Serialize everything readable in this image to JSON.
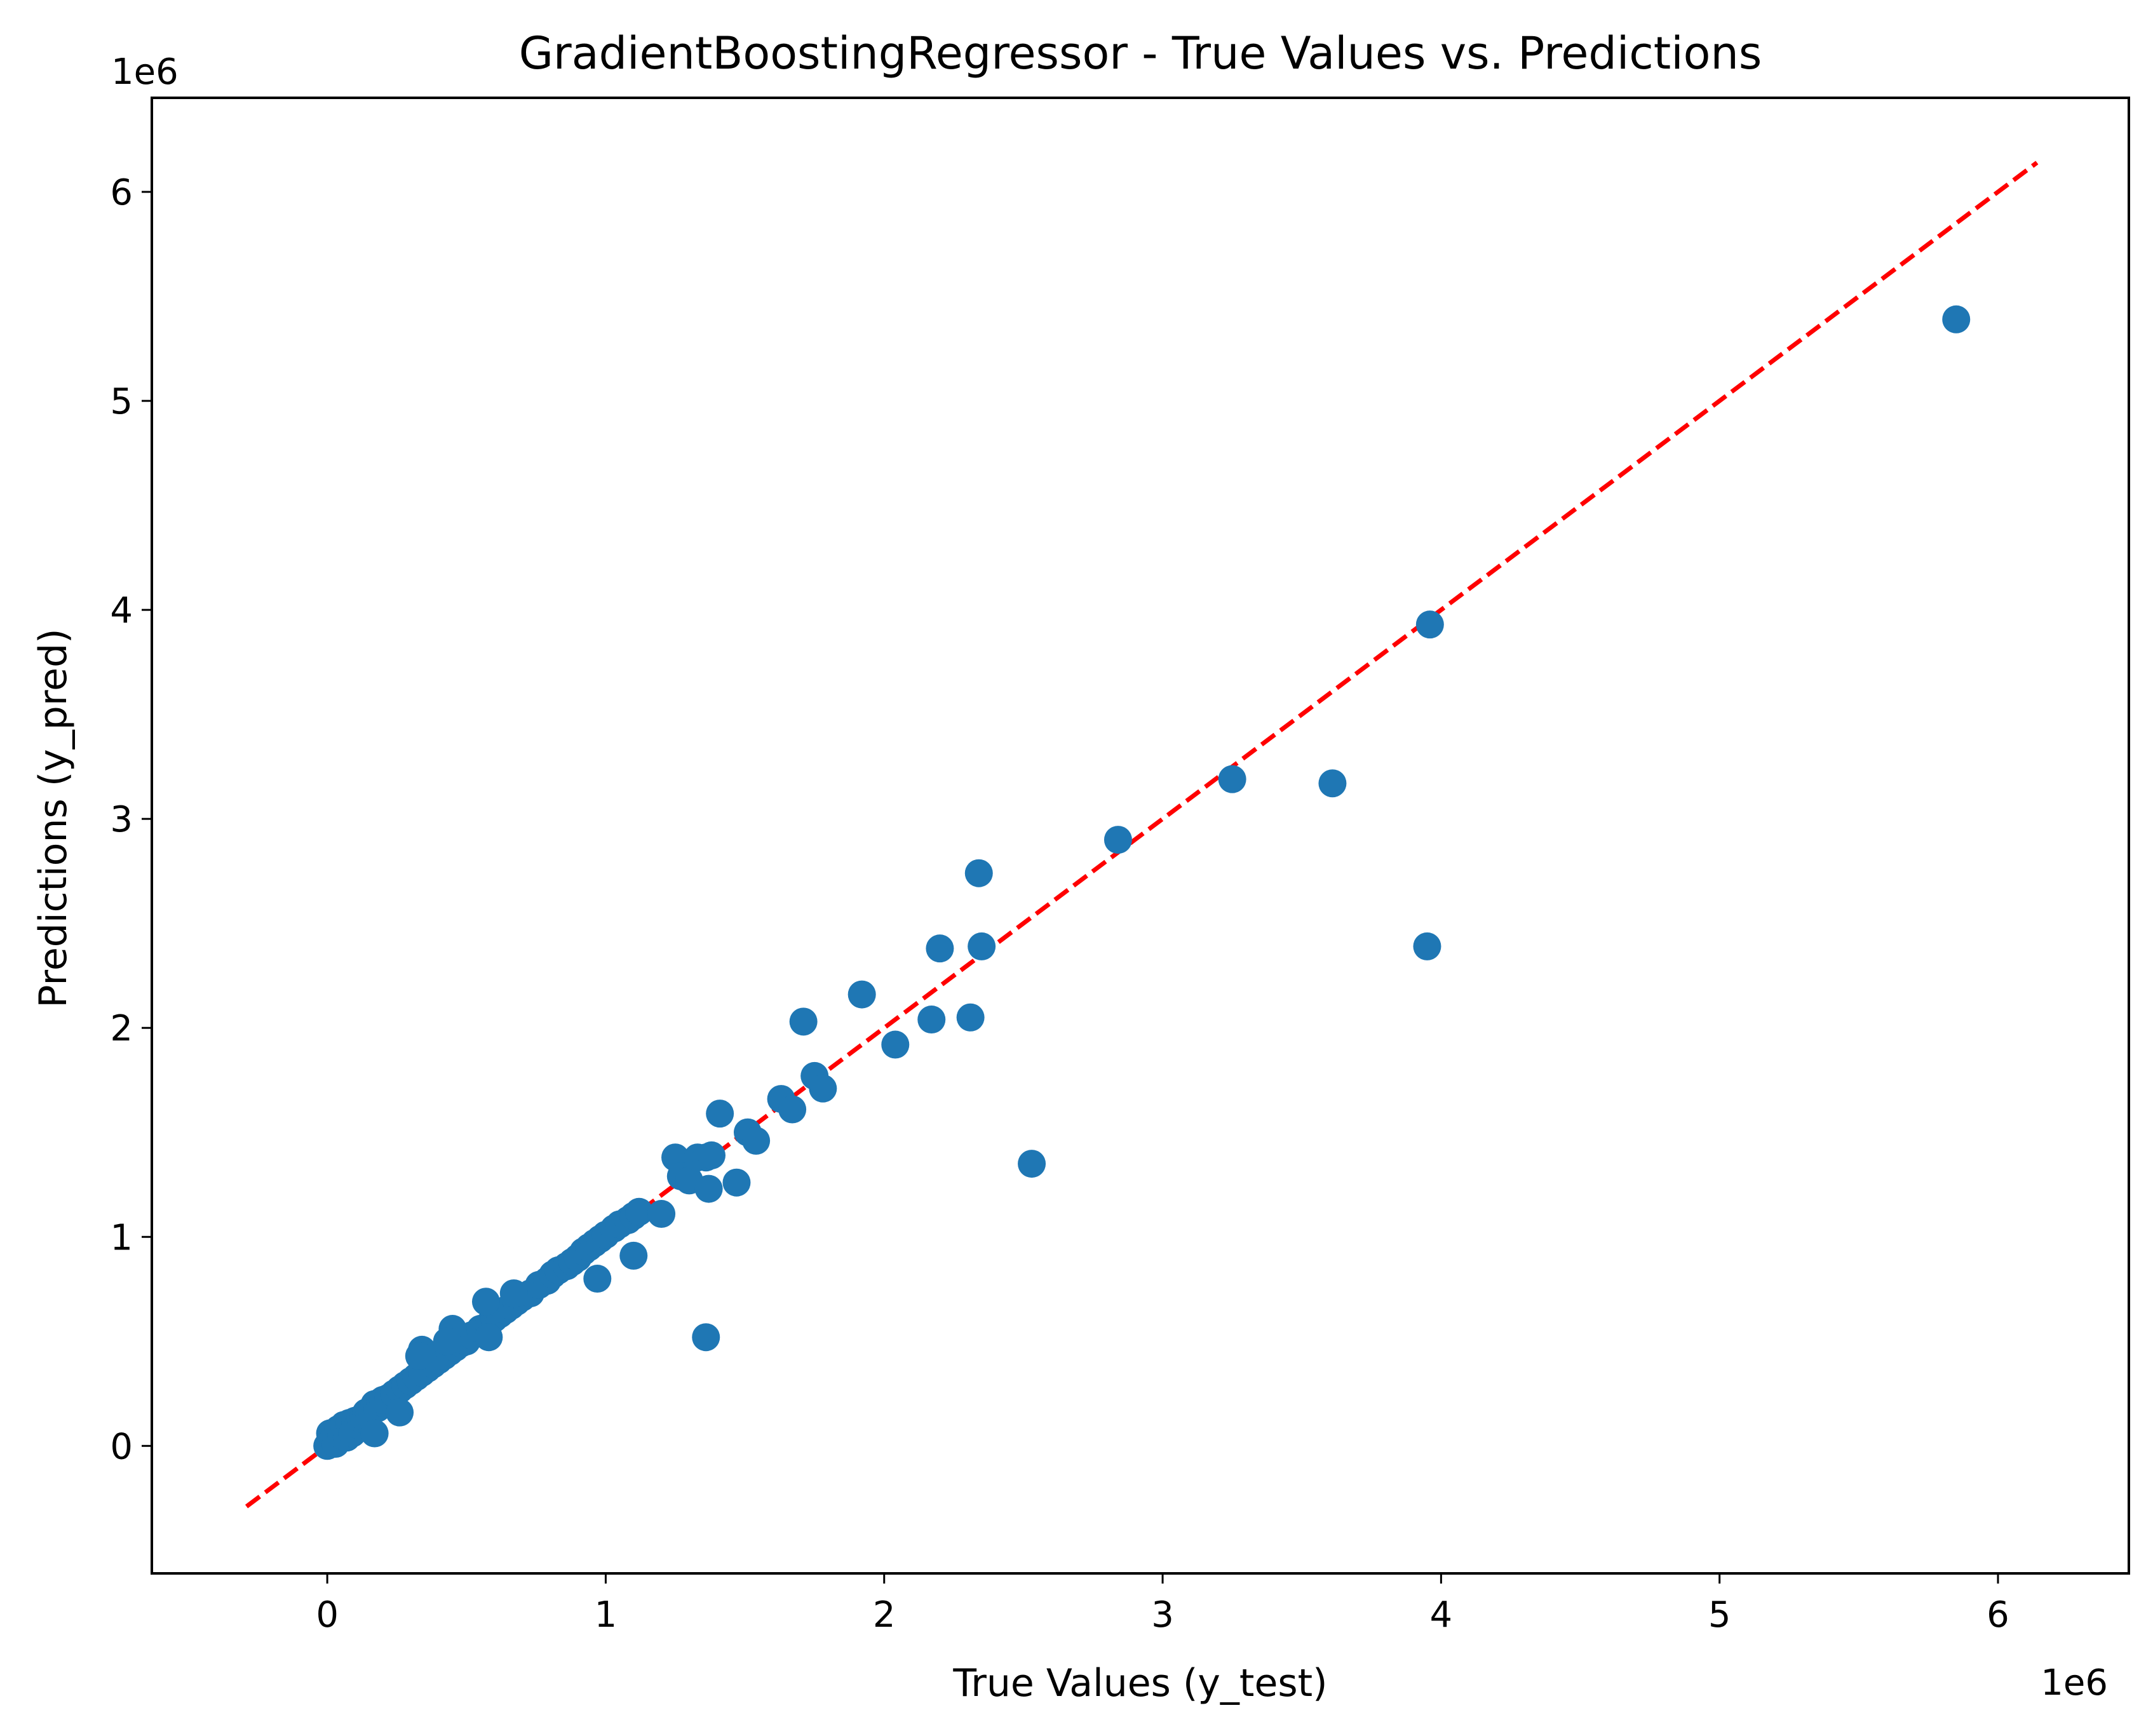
{
  "chart_data": {
    "type": "scatter",
    "title": "GradientBoostingRegressor - True Values vs. Predictions",
    "xlabel": "True Values (y_test)",
    "ylabel": "Predictions (y_pred)",
    "x_offset_label": "1e6",
    "y_offset_label": "1e6",
    "xlim": [
      -0.63,
      6.47
    ],
    "ylim": [
      -0.61,
      6.45
    ],
    "x_ticks": [
      0,
      1,
      2,
      3,
      4,
      5,
      6
    ],
    "y_ticks": [
      0,
      1,
      2,
      3,
      4,
      5,
      6
    ],
    "grid": false,
    "marker_color": "#1f77b4",
    "reference_line": {
      "style": "dashed",
      "color": "#ff0000",
      "start": [
        -0.29,
        -0.29
      ],
      "end": [
        6.14,
        6.14
      ]
    },
    "series": [
      {
        "x": [
          0.0,
          0.01,
          0.02,
          0.03,
          0.04,
          0.05,
          0.06,
          0.07,
          0.08,
          0.09,
          0.1,
          0.11,
          0.12,
          0.13,
          0.14,
          0.15,
          0.16,
          0.17,
          0.18,
          0.19,
          0.2,
          0.22,
          0.24,
          0.26,
          0.28,
          0.3,
          0.32,
          0.34,
          0.36,
          0.38,
          0.4,
          0.42,
          0.44,
          0.46,
          0.48,
          0.5,
          0.52,
          0.55,
          0.58,
          0.6,
          0.62,
          0.64,
          0.66,
          0.68,
          0.7,
          0.73,
          0.76,
          0.79,
          0.81,
          0.83,
          0.86,
          0.88,
          0.9,
          0.92,
          0.94,
          0.96,
          0.98,
          1.0,
          1.03,
          1.05,
          1.08,
          1.1,
          1.12,
          1.2,
          1.25,
          1.27,
          1.3,
          1.33,
          1.36,
          1.37,
          1.38,
          1.41,
          1.47,
          1.51,
          1.54,
          1.63,
          1.67,
          1.71,
          1.75,
          1.78,
          1.92,
          2.04,
          2.17,
          2.2,
          2.31,
          2.34,
          2.35,
          2.53,
          2.84,
          3.25,
          3.61,
          3.95,
          3.96,
          5.85,
          0.17,
          0.26,
          0.34,
          0.45,
          0.57,
          0.67,
          0.33,
          0.43,
          0.58,
          0.97,
          1.1,
          1.36
        ],
        "y": [
          0.0,
          0.06,
          0.03,
          0.01,
          0.08,
          0.05,
          0.1,
          0.04,
          0.11,
          0.06,
          0.12,
          0.1,
          0.13,
          0.14,
          0.16,
          0.15,
          0.17,
          0.2,
          0.18,
          0.21,
          0.22,
          0.23,
          0.25,
          0.27,
          0.29,
          0.31,
          0.33,
          0.35,
          0.37,
          0.39,
          0.41,
          0.43,
          0.45,
          0.47,
          0.49,
          0.5,
          0.53,
          0.56,
          0.58,
          0.61,
          0.63,
          0.65,
          0.67,
          0.69,
          0.71,
          0.73,
          0.77,
          0.79,
          0.82,
          0.84,
          0.86,
          0.88,
          0.9,
          0.93,
          0.95,
          0.97,
          0.99,
          1.01,
          1.04,
          1.06,
          1.08,
          1.1,
          1.12,
          1.11,
          1.38,
          1.29,
          1.27,
          1.38,
          1.38,
          1.23,
          1.39,
          1.59,
          1.26,
          1.5,
          1.46,
          1.66,
          1.61,
          2.03,
          1.77,
          1.71,
          2.16,
          1.92,
          2.04,
          2.38,
          2.05,
          2.74,
          2.39,
          1.35,
          2.9,
          3.19,
          3.17,
          2.39,
          3.93,
          5.39,
          0.06,
          0.16,
          0.46,
          0.56,
          0.69,
          0.73,
          0.43,
          0.5,
          0.52,
          0.8,
          0.91,
          0.52
        ]
      }
    ]
  }
}
